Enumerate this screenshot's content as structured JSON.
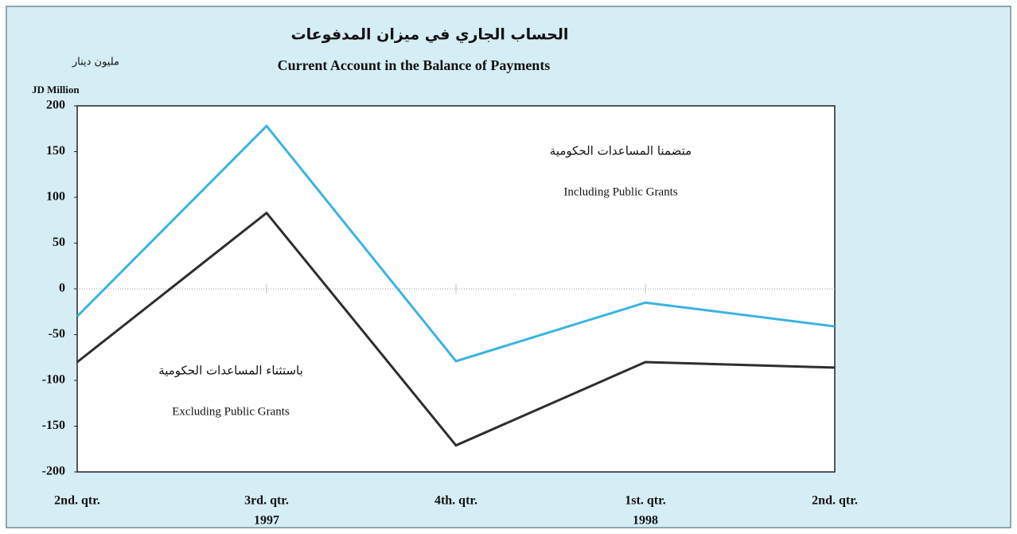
{
  "chart_data": {
    "type": "line",
    "title": "Current Account in the Balance of Payments",
    "title_ar": "الحساب الجاري في ميزان المدفوعات",
    "y_label": "JD Million",
    "y_label_ar": "مليون دينار",
    "categories": [
      "2nd. qtr.",
      "3rd. qtr.",
      "4th. qtr.",
      "1st. qtr.",
      "2nd. qtr."
    ],
    "category_years": [
      null,
      "1997",
      null,
      "1998",
      null
    ],
    "series": [
      {
        "name": "Including Public Grants",
        "name_ar": "متضمنا المساعدات الحكومية",
        "color": "#3ab4e2",
        "values": [
          -30,
          178,
          -79,
          -15,
          -41
        ]
      },
      {
        "name": "Excluding Public Grants",
        "name_ar": "باستثناء المساعدات الحكومية",
        "color": "#2e2e2e",
        "values": [
          -80,
          83,
          -171,
          -80,
          -86
        ]
      }
    ],
    "ylim": [
      -200,
      200
    ],
    "yticks": [
      -200,
      -150,
      -100,
      -50,
      0,
      50,
      100,
      150,
      200
    ],
    "grid": false,
    "zero_line": true
  }
}
